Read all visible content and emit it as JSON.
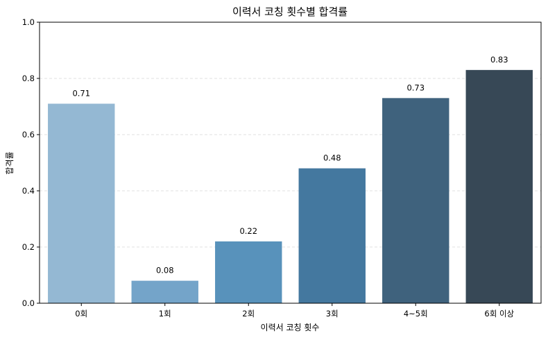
{
  "chart_data": {
    "type": "bar",
    "title": "이력서 코칭 횟수별 합격률",
    "xlabel": "이력서 코칭 횟수",
    "ylabel": "합격률",
    "categories": [
      "0회",
      "1회",
      "2회",
      "3회",
      "4~5회",
      "6회 이상"
    ],
    "values": [
      0.71,
      0.08,
      0.22,
      0.48,
      0.73,
      0.83
    ],
    "data_labels": [
      "0.71",
      "0.08",
      "0.22",
      "0.48",
      "0.73",
      "0.83"
    ],
    "ylim": [
      0,
      1.0
    ],
    "yticks": [
      0.0,
      0.2,
      0.4,
      0.6,
      0.8,
      1.0
    ],
    "ytick_labels": [
      "0.0",
      "0.2",
      "0.4",
      "0.6",
      "0.8",
      "1.0"
    ],
    "grid": "y-dashed",
    "colors": [
      "#94b8d3",
      "#74a4c9",
      "#5892bb",
      "#44789f",
      "#3f627d",
      "#374856"
    ]
  }
}
